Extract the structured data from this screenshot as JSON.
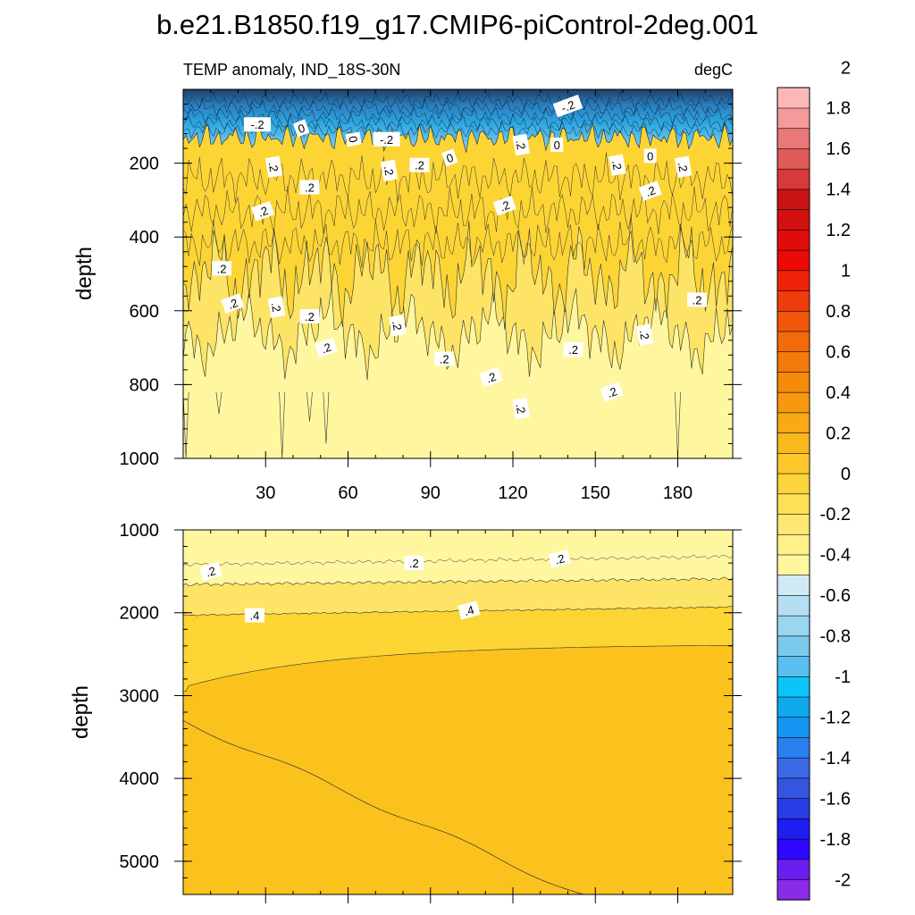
{
  "chart_data": {
    "type": "contour",
    "title": "b.e21.B1850.f19_g17.CMIP6-piControl-2deg.001",
    "left_subtitle": "TEMP anomaly, IND_18S-30N",
    "right_subtitle": "degC",
    "xlabel": "",
    "ylabel": "depth",
    "x_range": [
      0,
      200
    ],
    "x_ticks": [
      30,
      60,
      90,
      120,
      150,
      180
    ],
    "panels": [
      {
        "name": "upper",
        "y_range": [
          0,
          1000
        ],
        "y_ticks": [
          200,
          400,
          600,
          800,
          1000
        ],
        "contour_labels": [
          {
            "x": 27,
            "y": 95,
            "text": "-.2"
          },
          {
            "x": 43,
            "y": 105,
            "text": "0"
          },
          {
            "x": 62,
            "y": 135,
            "text": "0"
          },
          {
            "x": 74,
            "y": 135,
            "text": "-.2"
          },
          {
            "x": 140,
            "y": 45,
            "text": "-.2"
          },
          {
            "x": 33,
            "y": 210,
            "text": ".2"
          },
          {
            "x": 46,
            "y": 265,
            "text": ".2"
          },
          {
            "x": 29,
            "y": 330,
            "text": ".2"
          },
          {
            "x": 75,
            "y": 220,
            "text": ".2"
          },
          {
            "x": 86,
            "y": 205,
            "text": ".2"
          },
          {
            "x": 97,
            "y": 185,
            "text": "0"
          },
          {
            "x": 123,
            "y": 150,
            "text": ".2"
          },
          {
            "x": 136,
            "y": 150,
            "text": "0"
          },
          {
            "x": 117,
            "y": 315,
            "text": ".2"
          },
          {
            "x": 158,
            "y": 205,
            "text": ".2"
          },
          {
            "x": 170,
            "y": 180,
            "text": "0"
          },
          {
            "x": 170,
            "y": 275,
            "text": ".2"
          },
          {
            "x": 182,
            "y": 210,
            "text": ".2"
          },
          {
            "x": 14,
            "y": 485,
            "text": ".2"
          },
          {
            "x": 18,
            "y": 580,
            "text": ".2"
          },
          {
            "x": 34,
            "y": 590,
            "text": ".2"
          },
          {
            "x": 46,
            "y": 615,
            "text": ".2"
          },
          {
            "x": 52,
            "y": 700,
            "text": ".2"
          },
          {
            "x": 78,
            "y": 640,
            "text": ".2"
          },
          {
            "x": 95,
            "y": 730,
            "text": ".2"
          },
          {
            "x": 112,
            "y": 780,
            "text": ".2"
          },
          {
            "x": 123,
            "y": 865,
            "text": ".2"
          },
          {
            "x": 142,
            "y": 705,
            "text": ".2"
          },
          {
            "x": 156,
            "y": 820,
            "text": ".2"
          },
          {
            "x": 168,
            "y": 665,
            "text": ".2"
          },
          {
            "x": 187,
            "y": 570,
            "text": ".2"
          }
        ]
      },
      {
        "name": "lower",
        "y_range": [
          1000,
          5400
        ],
        "y_ticks": [
          1000,
          2000,
          3000,
          4000,
          5000
        ],
        "contour_labels": [
          {
            "x": 10,
            "y": 1500,
            "text": ".2"
          },
          {
            "x": 84,
            "y": 1400,
            "text": ".2"
          },
          {
            "x": 137,
            "y": 1350,
            "text": ".2"
          },
          {
            "x": 26,
            "y": 2030,
            "text": ".4"
          },
          {
            "x": 104,
            "y": 1970,
            "text": ".4"
          }
        ]
      }
    ],
    "colorbar": {
      "levels": [
        -2,
        -1.8,
        -1.6,
        -1.4,
        -1.2,
        -1,
        -0.8,
        -0.6,
        -0.4,
        -0.2,
        0,
        0.2,
        0.4,
        0.6,
        0.8,
        1,
        1.2,
        1.4,
        1.6,
        1.8,
        2
      ],
      "tick_labels": [
        "-2",
        "-1.8",
        "-1.6",
        "-1.4",
        "-1.2",
        "-1",
        "-0.8",
        "-0.6",
        "-0.4",
        "-0.2",
        "0",
        "0.2",
        "0.4",
        "0.6",
        "0.8",
        "1",
        "1.2",
        "1.4",
        "1.6",
        "1.8",
        "2"
      ],
      "colors_bottom_to_top": [
        "#8a2be8",
        "#6a1ff0",
        "#2e08ff",
        "#1e1ef0",
        "#2a3ce6",
        "#3455de",
        "#3a6ae6",
        "#2a7fee",
        "#1496f2",
        "#0fa9ee",
        "#0cc4f8",
        "#58bff0",
        "#7cc9ee",
        "#9ad6f0",
        "#b4def2",
        "#cfeaf5",
        "#fff7a0",
        "#fff08a",
        "#fee872",
        "#fde058",
        "#fcd43c",
        "#fbc72a",
        "#f9b81e",
        "#f8a914",
        "#f7990e",
        "#f68a0c",
        "#f47a0a",
        "#f26a0a",
        "#f0560c",
        "#ee3c0c",
        "#ee2208",
        "#ec0a06",
        "#e00c0c",
        "#d21010",
        "#c81414",
        "#d63a3a",
        "#e05a5a",
        "#ea7878",
        "#f59a9a",
        "#fbb8b8"
      ]
    },
    "palette": {
      "cold_deep": "#1d3f63",
      "cold_mid": "#2ea8e2",
      "cold_light": "#8fd2f1",
      "zero_band": "#fff7a0",
      "warm_02": "#fde466",
      "warm_04": "#fcd535",
      "warm_06": "#fbc21e"
    }
  }
}
